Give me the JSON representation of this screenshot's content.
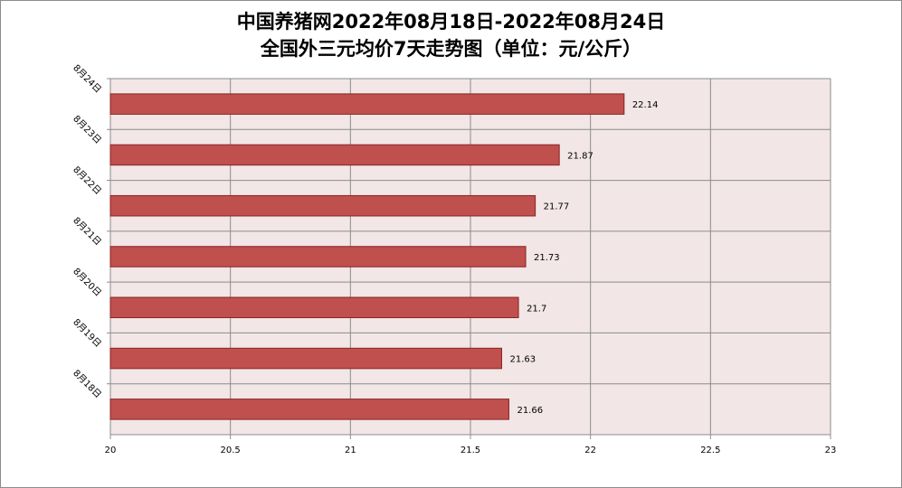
{
  "title_line1": "中国养猪网2022年08月18日-2022年08月24日",
  "title_line2": "全国外三元均价7天走势图（单位：元/公斤）",
  "colors": {
    "bar_fill": "#c0504d",
    "bar_stroke": "#8b2323",
    "plot_bg": "#f2e6e6",
    "grid": "#8c8c8c"
  },
  "chart_data": {
    "type": "bar",
    "orientation": "horizontal",
    "title": "中国养猪网2022年08月18日-2022年08月24日 全国外三元均价7天走势图（单位：元/公斤）",
    "categories": [
      "8月24日",
      "8月23日",
      "8月22日",
      "8月21日",
      "8月20日",
      "8月19日",
      "8月18日"
    ],
    "values": [
      22.14,
      21.87,
      21.77,
      21.73,
      21.7,
      21.63,
      21.66
    ],
    "value_labels": [
      "22.14",
      "21.87",
      "21.77",
      "21.73",
      "21.7",
      "21.63",
      "21.66"
    ],
    "xlim": [
      20,
      23
    ],
    "xticks": [
      "20",
      "20.5",
      "21",
      "21.5",
      "22",
      "22.5",
      "23"
    ],
    "xlabel": "",
    "ylabel": "",
    "grid": true,
    "legend": "none"
  }
}
